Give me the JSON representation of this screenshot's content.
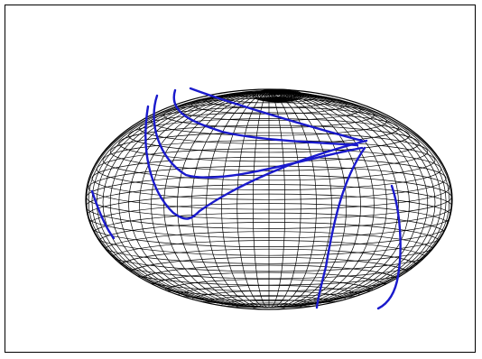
{
  "figure": {
    "background": "#ffffff",
    "frame_color": "#000000",
    "mesh_color": "#000000",
    "curve_color": "#1a1acc",
    "mesh_meridians": 72,
    "mesh_parallels": 36,
    "geodesic_count": 6
  }
}
